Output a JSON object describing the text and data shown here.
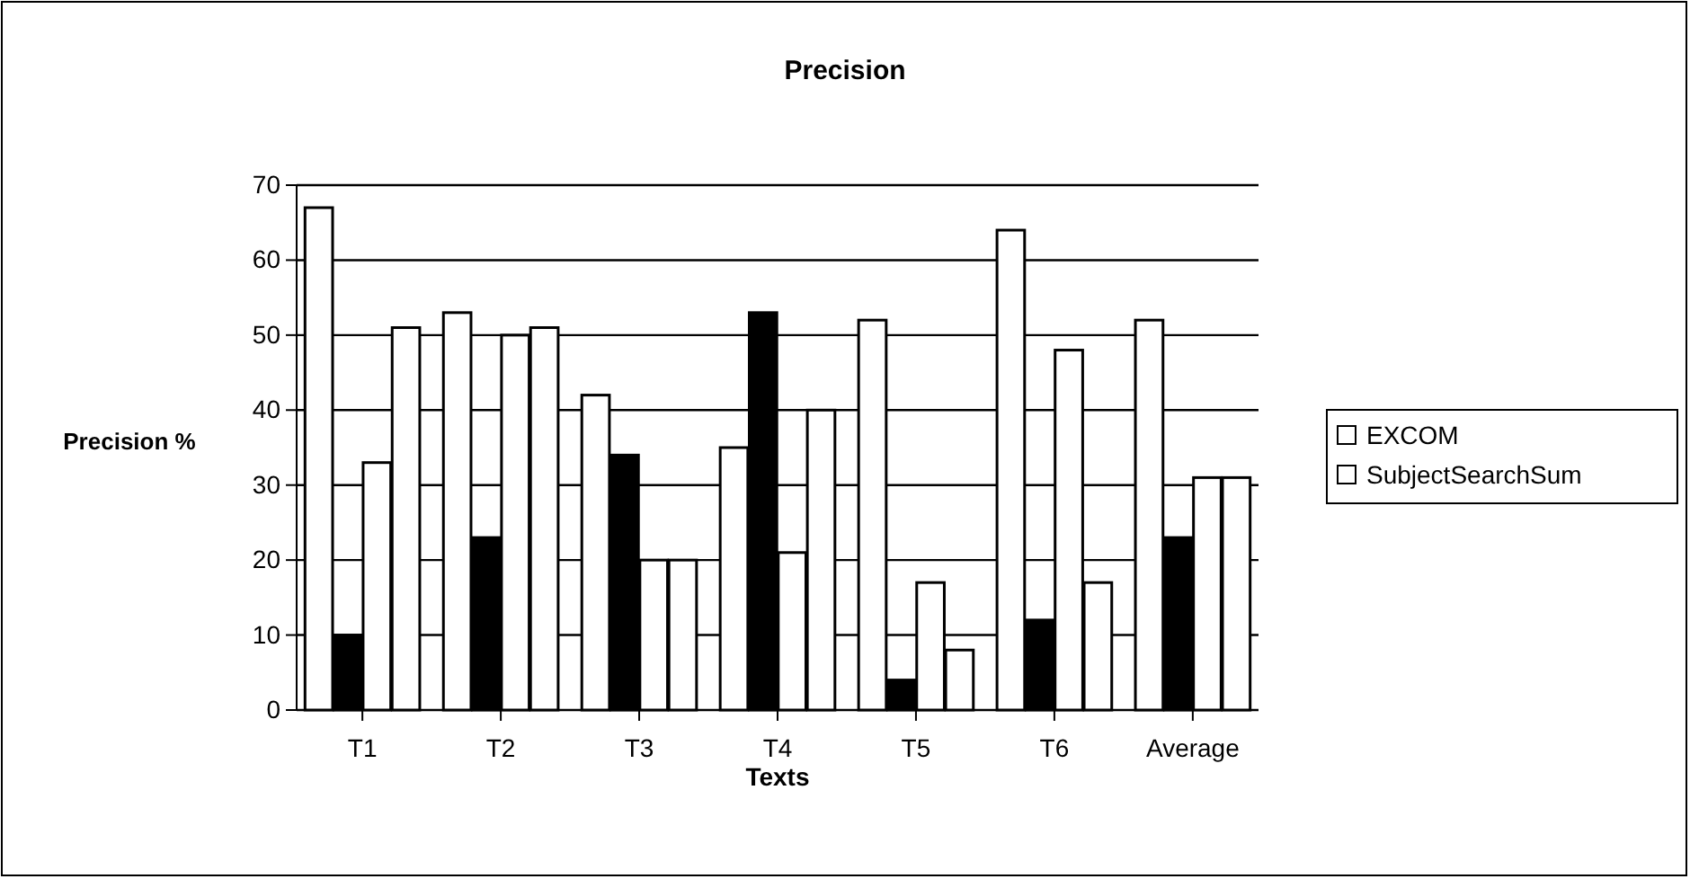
{
  "chart_data": {
    "type": "bar",
    "title": "Precision",
    "xlabel": "Texts",
    "ylabel": "Precision %",
    "categories": [
      "T1",
      "T2",
      "T3",
      "T4",
      "T5",
      "T6",
      "Average"
    ],
    "series": [
      {
        "name": "EXCOM",
        "color": "#ffffff",
        "values": [
          67,
          53,
          42,
          35,
          52,
          64,
          52
        ]
      },
      {
        "color": "#000000",
        "values": [
          10,
          23,
          34,
          53,
          4,
          12,
          23
        ]
      },
      {
        "color": "#ffffff",
        "values": [
          33,
          50,
          20,
          21,
          17,
          48,
          31
        ]
      },
      {
        "name": "SubjectSearchSum",
        "color": "#ffffff",
        "values": [
          51,
          51,
          20,
          40,
          8,
          17,
          31
        ]
      }
    ],
    "ylim": [
      0,
      70
    ],
    "yticks": [
      0,
      10,
      20,
      30,
      40,
      50,
      60,
      70
    ],
    "grid": "y",
    "legend": "right"
  }
}
